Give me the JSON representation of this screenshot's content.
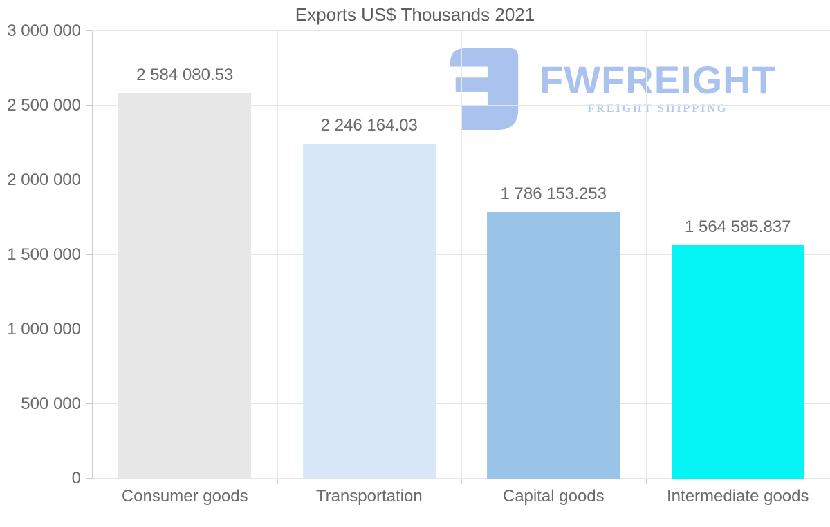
{
  "title": "Exports US$ Thousands 2021",
  "watermark": {
    "brand": "FWFREIGHT",
    "tagline": "FREIGHT SHIPPING",
    "logo_icon": "fwfreight-logo-mark",
    "brand_color": "#a9c2ee",
    "tagline_color": "#b3c9f0"
  },
  "chart_data": {
    "type": "bar",
    "title": "Exports US$ Thousands 2021",
    "categories": [
      "Consumer goods",
      "Transportation",
      "Capital goods",
      "Intermediate goods"
    ],
    "values": [
      2584080.53,
      2246164.03,
      1786153.253,
      1564585.837
    ],
    "value_labels": [
      "2 584 080.53",
      "2 246 164.03",
      "1 786 153.253",
      "1 564 585.837"
    ],
    "bar_colors": [
      "#e7e7e7",
      "#d9e8f8",
      "#99c4e7",
      "#05f5f5"
    ],
    "xlabel": "",
    "ylabel": "",
    "ylim": [
      0,
      3000000
    ],
    "yticks": [
      0,
      500000,
      1000000,
      1500000,
      2000000,
      2500000,
      3000000
    ],
    "ytick_labels": [
      "0",
      "500 000",
      "1 000 000",
      "1 500 000",
      "2 000 000",
      "2 500 000",
      "3 000 000"
    ],
    "grid": "horizontal gridlines at y ticks plus vertical category separators",
    "legend": "none",
    "colors": {
      "grid": "#e5e5e5",
      "vgrid": "#e9e9e9",
      "axis": "#cccccc",
      "text": "#6b6b6b"
    }
  }
}
